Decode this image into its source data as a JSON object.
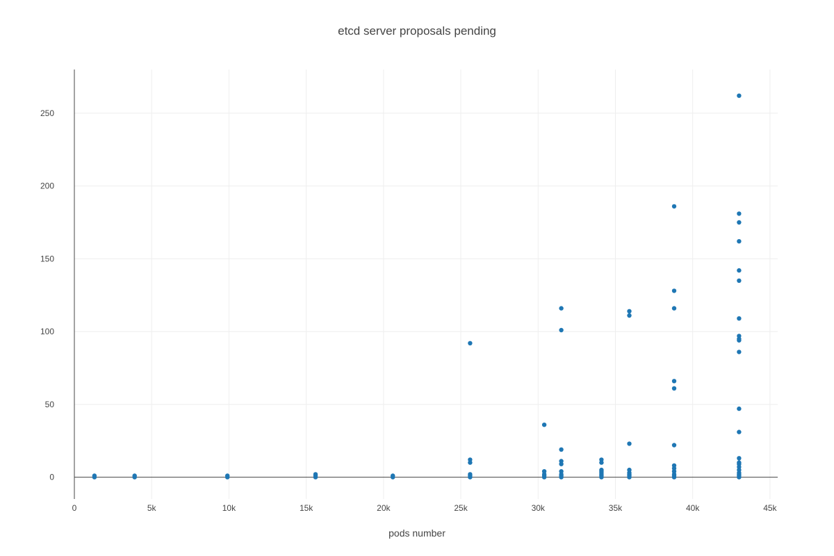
{
  "chart_data": {
    "type": "scatter",
    "title": "etcd server proposals pending",
    "xlabel": "pods number",
    "ylabel": "",
    "xlim": [
      0,
      45500
    ],
    "ylim": [
      -15,
      280
    ],
    "xticks": [
      0,
      5000,
      10000,
      15000,
      20000,
      25000,
      30000,
      35000,
      40000,
      45000
    ],
    "xtick_labels": [
      "0",
      "5k",
      "10k",
      "15k",
      "20k",
      "25k",
      "30k",
      "35k",
      "40k",
      "45k"
    ],
    "yticks": [
      0,
      50,
      100,
      150,
      200,
      250
    ],
    "ytick_labels": [
      "0",
      "50",
      "100",
      "150",
      "200",
      "250"
    ],
    "grid": true,
    "marker_color": "#1f77b4",
    "series": [
      {
        "points": [
          [
            1300,
            0
          ],
          [
            1300,
            1
          ],
          [
            3900,
            0
          ],
          [
            3900,
            1
          ],
          [
            9900,
            0
          ],
          [
            9900,
            1
          ],
          [
            15600,
            0
          ],
          [
            15600,
            1
          ],
          [
            15600,
            2
          ],
          [
            20600,
            0
          ],
          [
            20600,
            1
          ],
          [
            25600,
            0
          ],
          [
            25600,
            1
          ],
          [
            25600,
            2
          ],
          [
            25600,
            10
          ],
          [
            25600,
            12
          ],
          [
            25600,
            92
          ],
          [
            30400,
            0
          ],
          [
            30400,
            1
          ],
          [
            30400,
            2
          ],
          [
            30400,
            4
          ],
          [
            30400,
            36
          ],
          [
            31500,
            0
          ],
          [
            31500,
            1
          ],
          [
            31500,
            2
          ],
          [
            31500,
            4
          ],
          [
            31500,
            9
          ],
          [
            31500,
            11
          ],
          [
            31500,
            19
          ],
          [
            31500,
            101
          ],
          [
            31500,
            116
          ],
          [
            34100,
            0
          ],
          [
            34100,
            1
          ],
          [
            34100,
            2
          ],
          [
            34100,
            3
          ],
          [
            34100,
            4
          ],
          [
            34100,
            5
          ],
          [
            34100,
            10
          ],
          [
            34100,
            12
          ],
          [
            35900,
            0
          ],
          [
            35900,
            1
          ],
          [
            35900,
            2
          ],
          [
            35900,
            3
          ],
          [
            35900,
            5
          ],
          [
            35900,
            23
          ],
          [
            35900,
            111
          ],
          [
            35900,
            114
          ],
          [
            38800,
            0
          ],
          [
            38800,
            1
          ],
          [
            38800,
            2
          ],
          [
            38800,
            4
          ],
          [
            38800,
            6
          ],
          [
            38800,
            8
          ],
          [
            38800,
            22
          ],
          [
            38800,
            61
          ],
          [
            38800,
            66
          ],
          [
            38800,
            116
          ],
          [
            38800,
            128
          ],
          [
            38800,
            186
          ],
          [
            43000,
            0
          ],
          [
            43000,
            1
          ],
          [
            43000,
            2
          ],
          [
            43000,
            3
          ],
          [
            43000,
            5
          ],
          [
            43000,
            7
          ],
          [
            43000,
            9
          ],
          [
            43000,
            10
          ],
          [
            43000,
            13
          ],
          [
            43000,
            31
          ],
          [
            43000,
            47
          ],
          [
            43000,
            86
          ],
          [
            43000,
            94
          ],
          [
            43000,
            95
          ],
          [
            43000,
            97
          ],
          [
            43000,
            109
          ],
          [
            43000,
            135
          ],
          [
            43000,
            142
          ],
          [
            43000,
            162
          ],
          [
            43000,
            175
          ],
          [
            43000,
            181
          ],
          [
            43000,
            262
          ]
        ]
      }
    ]
  }
}
